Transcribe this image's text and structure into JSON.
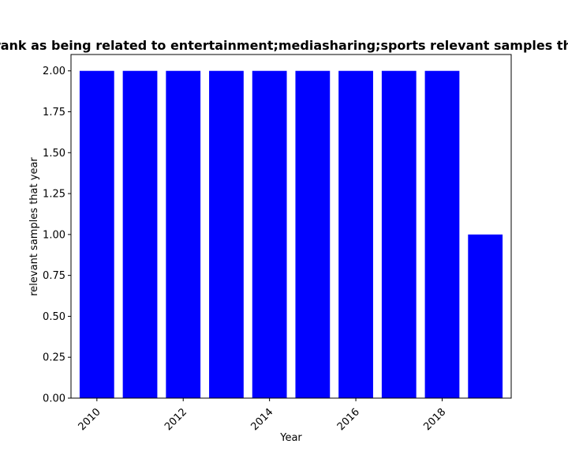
{
  "chart_data": {
    "type": "bar",
    "title": "Number of samples in the dataset that were classified by Textrank as being related to entertainment;mediasharing;sports relevant samples that year in proportion to the total number of samples that year",
    "xlabel": "Year",
    "ylabel": "relevant samples that year",
    "categories": [
      "2010",
      "2011",
      "2012",
      "2013",
      "2014",
      "2015",
      "2016",
      "2017",
      "2018",
      "2019"
    ],
    "values": [
      2,
      2,
      2,
      2,
      2,
      2,
      2,
      2,
      2,
      1
    ],
    "x_ticks": [
      "2010",
      "2012",
      "2014",
      "2016",
      "2018"
    ],
    "y_ticks": [
      "0.00",
      "0.25",
      "0.50",
      "0.75",
      "1.00",
      "1.25",
      "1.50",
      "1.75",
      "2.00"
    ],
    "ylim": [
      0,
      2.1
    ],
    "xlim": [
      2009.4,
      2019.6
    ],
    "bar_color": "#0000ff",
    "grid": false
  }
}
